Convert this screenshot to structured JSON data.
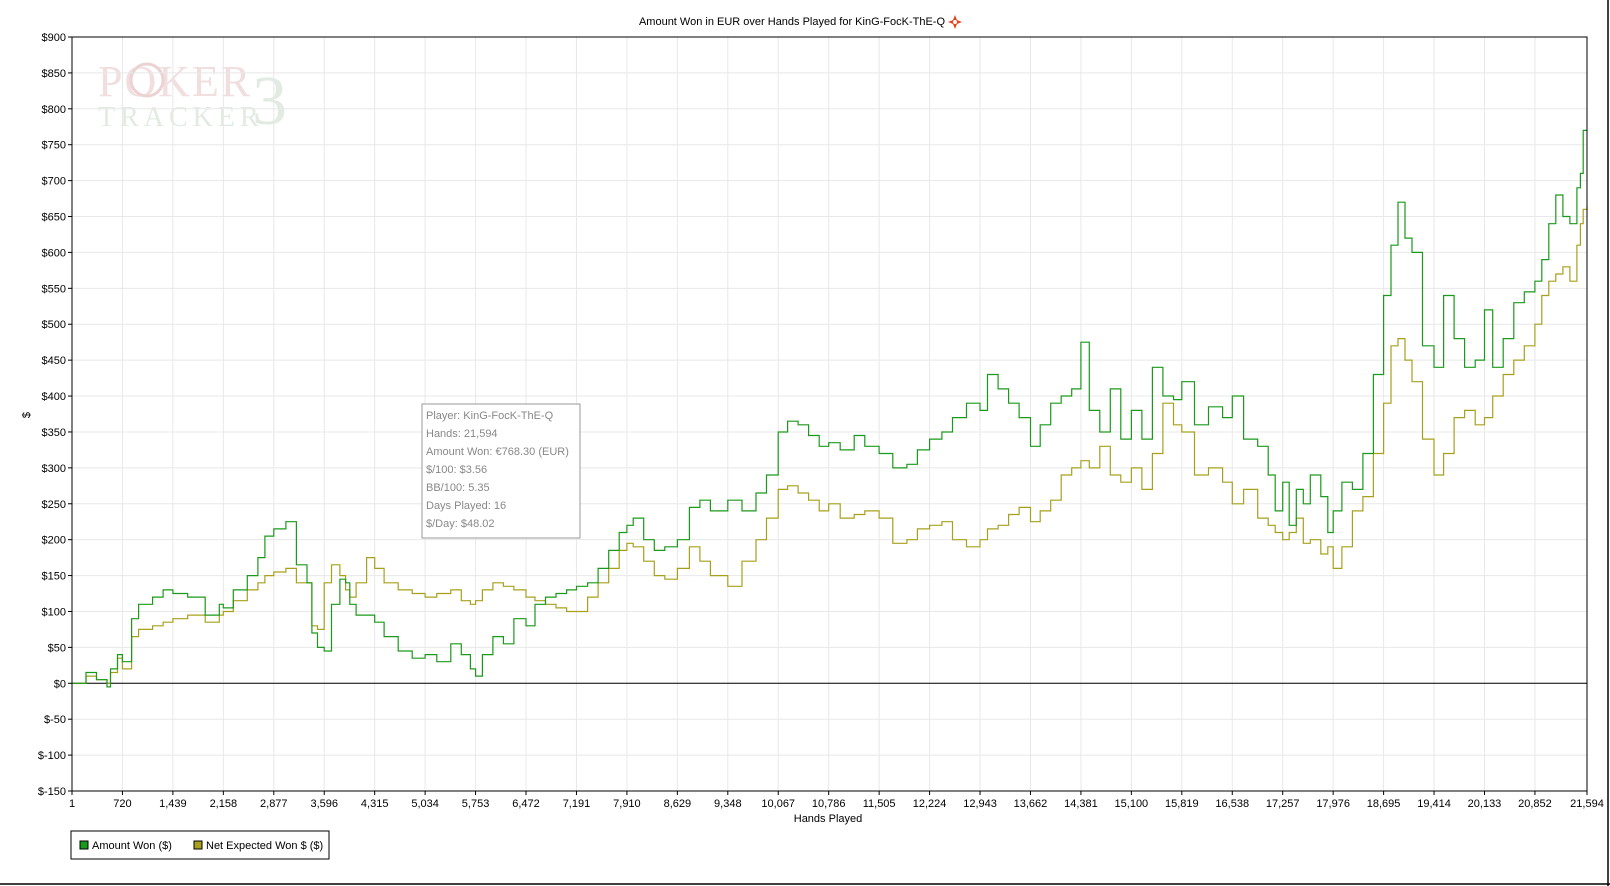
{
  "chart_data": {
    "type": "line",
    "title": "Amount Won in EUR over Hands Played for KinG-FocK-ThE-Q",
    "xlabel": "Hands Played",
    "ylabel": "$",
    "xlim": [
      1,
      21594
    ],
    "ylim": [
      -150,
      900
    ],
    "x_ticks": [
      1,
      720,
      1439,
      2158,
      2877,
      3596,
      4315,
      5034,
      5753,
      6472,
      7191,
      7910,
      8629,
      9348,
      10067,
      10786,
      11505,
      12224,
      12943,
      13662,
      14381,
      15100,
      15819,
      16538,
      17257,
      17976,
      18695,
      19414,
      20133,
      20852,
      21594
    ],
    "x_tick_labels": [
      "1",
      "720",
      "1,439",
      "2,158",
      "2,877",
      "3,596",
      "4,315",
      "5,034",
      "5,753",
      "6,472",
      "7,191",
      "7,910",
      "8,629",
      "9,348",
      "10,067",
      "10,786",
      "11,505",
      "12,224",
      "12,943",
      "13,662",
      "14,381",
      "15,100",
      "15,819",
      "16,538",
      "17,257",
      "17,976",
      "18,695",
      "19,414",
      "20,133",
      "20,852",
      "21,594"
    ],
    "y_ticks": [
      -150,
      -100,
      -50,
      0,
      50,
      100,
      150,
      200,
      250,
      300,
      350,
      400,
      450,
      500,
      550,
      600,
      650,
      700,
      750,
      800,
      850,
      900
    ],
    "y_tick_labels": [
      "$-150",
      "$-100",
      "$-50",
      "$0",
      "$50",
      "$100",
      "$150",
      "$200",
      "$250",
      "$300",
      "$350",
      "$400",
      "$450",
      "$500",
      "$550",
      "$600",
      "$650",
      "$700",
      "$750",
      "$800",
      "$850",
      "$900"
    ],
    "grid": true,
    "legend_position": "bottom-left",
    "series": [
      {
        "name": "Amount Won ($)",
        "color": "#1a9a1a",
        "x": [
          1,
          200,
          350,
          500,
          550,
          650,
          720,
          850,
          950,
          1150,
          1300,
          1439,
          1650,
          1900,
          2100,
          2158,
          2300,
          2500,
          2650,
          2750,
          2877,
          3050,
          3200,
          3350,
          3420,
          3500,
          3596,
          3700,
          3820,
          3900,
          3960,
          4050,
          4200,
          4315,
          4450,
          4650,
          4850,
          5034,
          5200,
          5400,
          5550,
          5680,
          5753,
          5850,
          6000,
          6150,
          6300,
          6472,
          6600,
          6750,
          6900,
          7050,
          7191,
          7350,
          7500,
          7650,
          7800,
          7910,
          8000,
          8150,
          8300,
          8450,
          8629,
          8800,
          8950,
          9100,
          9348,
          9550,
          9750,
          9900,
          10067,
          10200,
          10350,
          10500,
          10650,
          10786,
          10950,
          11150,
          11300,
          11505,
          11700,
          11900,
          12050,
          12224,
          12400,
          12550,
          12750,
          12943,
          13050,
          13200,
          13350,
          13500,
          13662,
          13800,
          13950,
          14100,
          14250,
          14381,
          14500,
          14650,
          14800,
          14950,
          15100,
          15250,
          15400,
          15550,
          15700,
          15819,
          16000,
          16200,
          16400,
          16538,
          16700,
          16900,
          17050,
          17150,
          17257,
          17350,
          17450,
          17550,
          17650,
          17800,
          17900,
          17976,
          18100,
          18250,
          18400,
          18550,
          18695,
          18800,
          18900,
          19000,
          19100,
          19250,
          19414,
          19550,
          19700,
          19850,
          20000,
          20133,
          20250,
          20400,
          20550,
          20700,
          20852,
          20950,
          21050,
          21150,
          21250,
          21350,
          21450,
          21500,
          21540,
          21594
        ],
        "values": [
          0,
          15,
          5,
          -5,
          20,
          40,
          30,
          90,
          110,
          120,
          130,
          125,
          120,
          95,
          110,
          105,
          130,
          150,
          175,
          205,
          215,
          225,
          165,
          140,
          70,
          50,
          45,
          110,
          145,
          140,
          110,
          95,
          95,
          85,
          65,
          45,
          35,
          40,
          30,
          55,
          40,
          20,
          10,
          40,
          65,
          55,
          90,
          80,
          110,
          120,
          125,
          130,
          135,
          140,
          160,
          185,
          210,
          220,
          230,
          200,
          185,
          190,
          200,
          245,
          255,
          240,
          255,
          240,
          265,
          290,
          350,
          365,
          360,
          345,
          330,
          335,
          325,
          345,
          330,
          320,
          300,
          305,
          325,
          340,
          350,
          370,
          390,
          380,
          430,
          410,
          390,
          370,
          330,
          360,
          390,
          400,
          410,
          475,
          380,
          350,
          410,
          340,
          380,
          340,
          440,
          400,
          395,
          420,
          360,
          385,
          370,
          400,
          340,
          330,
          290,
          240,
          280,
          220,
          270,
          250,
          290,
          260,
          210,
          240,
          280,
          270,
          320,
          430,
          540,
          610,
          670,
          620,
          600,
          470,
          440,
          540,
          480,
          440,
          450,
          520,
          440,
          480,
          530,
          545,
          560,
          590,
          640,
          680,
          650,
          640,
          690,
          710,
          770,
          770
        ]
      },
      {
        "name": "Net Expected Won $ ($)",
        "color": "#a8a01c",
        "x": [
          1,
          200,
          350,
          500,
          550,
          650,
          720,
          850,
          950,
          1150,
          1300,
          1439,
          1650,
          1900,
          2100,
          2158,
          2300,
          2500,
          2650,
          2750,
          2877,
          3050,
          3200,
          3350,
          3420,
          3500,
          3596,
          3700,
          3820,
          3900,
          3960,
          4050,
          4200,
          4315,
          4450,
          4650,
          4850,
          5034,
          5200,
          5400,
          5550,
          5680,
          5753,
          5850,
          6000,
          6150,
          6300,
          6472,
          6600,
          6750,
          6900,
          7050,
          7191,
          7350,
          7500,
          7650,
          7800,
          7910,
          8000,
          8150,
          8300,
          8450,
          8629,
          8800,
          8950,
          9100,
          9348,
          9550,
          9750,
          9900,
          10067,
          10200,
          10350,
          10500,
          10650,
          10786,
          10950,
          11150,
          11300,
          11505,
          11700,
          11900,
          12050,
          12224,
          12400,
          12550,
          12750,
          12943,
          13050,
          13200,
          13350,
          13500,
          13662,
          13800,
          13950,
          14100,
          14250,
          14381,
          14500,
          14650,
          14800,
          14950,
          15100,
          15250,
          15400,
          15550,
          15700,
          15819,
          16000,
          16200,
          16400,
          16538,
          16700,
          16900,
          17050,
          17150,
          17257,
          17350,
          17450,
          17550,
          17650,
          17800,
          17900,
          17976,
          18100,
          18250,
          18400,
          18550,
          18695,
          18800,
          18900,
          19000,
          19100,
          19250,
          19414,
          19550,
          19700,
          19850,
          20000,
          20133,
          20250,
          20400,
          20550,
          20700,
          20852,
          20950,
          21050,
          21150,
          21250,
          21350,
          21450,
          21500,
          21540,
          21594
        ],
        "values": [
          0,
          10,
          5,
          0,
          15,
          35,
          20,
          65,
          75,
          80,
          85,
          90,
          95,
          85,
          95,
          100,
          115,
          130,
          140,
          150,
          155,
          160,
          140,
          140,
          80,
          75,
          140,
          165,
          150,
          130,
          120,
          140,
          175,
          160,
          140,
          130,
          125,
          120,
          125,
          130,
          115,
          110,
          115,
          130,
          140,
          135,
          130,
          120,
          115,
          110,
          105,
          100,
          100,
          120,
          140,
          160,
          185,
          195,
          190,
          170,
          150,
          145,
          160,
          190,
          170,
          150,
          135,
          170,
          200,
          230,
          270,
          275,
          265,
          255,
          240,
          250,
          230,
          235,
          240,
          230,
          195,
          200,
          215,
          220,
          225,
          200,
          190,
          200,
          215,
          220,
          235,
          245,
          225,
          240,
          255,
          290,
          300,
          310,
          300,
          330,
          290,
          280,
          300,
          270,
          320,
          390,
          360,
          350,
          290,
          300,
          280,
          250,
          270,
          230,
          220,
          210,
          200,
          210,
          230,
          195,
          200,
          180,
          190,
          160,
          190,
          240,
          260,
          320,
          390,
          470,
          480,
          450,
          420,
          340,
          290,
          320,
          370,
          380,
          360,
          370,
          400,
          430,
          450,
          470,
          500,
          540,
          560,
          570,
          580,
          560,
          610,
          640,
          660,
          665
        ]
      }
    ],
    "tooltip": {
      "player": "Player: KinG-FocK-ThE-Q",
      "hands": "Hands: 21,594",
      "amount_won": "Amount Won: €768.30 (EUR)",
      "per100": "$/100: $3.56",
      "bb100": "BB/100: 5.35",
      "days_played": "Days Played: 16",
      "per_day": "$/Day: $48.02"
    },
    "watermark": "POKER TRACKER 3"
  },
  "colors": {
    "frame": "#000000",
    "grid": "#e8e8e8",
    "title_icon": "#e8431b"
  },
  "icons": {
    "title_icon": "diamond-star-icon"
  }
}
